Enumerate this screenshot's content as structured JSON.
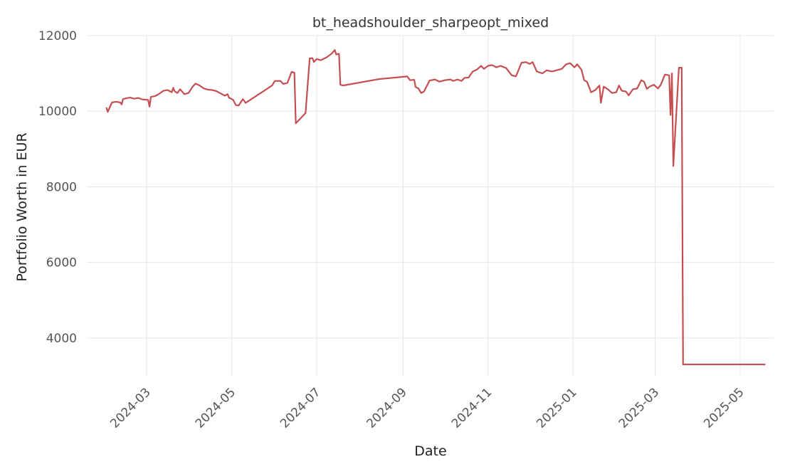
{
  "chart_data": {
    "type": "line",
    "title": "bt_headshoulder_sharpeopt_mixed",
    "xlabel": "Date",
    "ylabel": "Portfolio Worth in EUR",
    "x_ticks": [
      "2024-03",
      "2024-05",
      "2024-07",
      "2024-09",
      "2024-11",
      "2025-01",
      "2025-03",
      "2025-05"
    ],
    "y_ticks": [
      4000,
      6000,
      8000,
      10000,
      12000
    ],
    "xlim": [
      "2024-01-18",
      "2025-05-25"
    ],
    "ylim": [
      3000,
      12000
    ],
    "grid": true,
    "series": [
      {
        "color": "#c44e52",
        "points": [
          [
            "2024-02-01",
            10100
          ],
          [
            "2024-02-02",
            9980
          ],
          [
            "2024-02-05",
            10230
          ],
          [
            "2024-02-08",
            10250
          ],
          [
            "2024-02-11",
            10230
          ],
          [
            "2024-02-12",
            10180
          ],
          [
            "2024-02-13",
            10320
          ],
          [
            "2024-02-15",
            10340
          ],
          [
            "2024-02-18",
            10360
          ],
          [
            "2024-02-21",
            10330
          ],
          [
            "2024-02-24",
            10350
          ],
          [
            "2024-02-27",
            10310
          ],
          [
            "2024-03-02",
            10300
          ],
          [
            "2024-03-03",
            10120
          ],
          [
            "2024-03-04",
            10380
          ],
          [
            "2024-03-07",
            10400
          ],
          [
            "2024-03-10",
            10460
          ],
          [
            "2024-03-13",
            10540
          ],
          [
            "2024-03-16",
            10560
          ],
          [
            "2024-03-19",
            10500
          ],
          [
            "2024-03-20",
            10620
          ],
          [
            "2024-03-21",
            10530
          ],
          [
            "2024-03-23",
            10480
          ],
          [
            "2024-03-25",
            10580
          ],
          [
            "2024-03-28",
            10450
          ],
          [
            "2024-03-31",
            10480
          ],
          [
            "2024-04-03",
            10650
          ],
          [
            "2024-04-05",
            10730
          ],
          [
            "2024-04-08",
            10680
          ],
          [
            "2024-04-11",
            10600
          ],
          [
            "2024-04-14",
            10570
          ],
          [
            "2024-04-17",
            10560
          ],
          [
            "2024-04-20",
            10530
          ],
          [
            "2024-04-23",
            10470
          ],
          [
            "2024-04-26",
            10410
          ],
          [
            "2024-04-28",
            10450
          ],
          [
            "2024-04-29",
            10360
          ],
          [
            "2024-05-02",
            10300
          ],
          [
            "2024-05-04",
            10160
          ],
          [
            "2024-05-06",
            10150
          ],
          [
            "2024-05-09",
            10320
          ],
          [
            "2024-05-11",
            10220
          ],
          [
            "2024-05-30",
            10680
          ],
          [
            "2024-06-01",
            10800
          ],
          [
            "2024-06-05",
            10800
          ],
          [
            "2024-06-07",
            10720
          ],
          [
            "2024-06-10",
            10750
          ],
          [
            "2024-06-13",
            11040
          ],
          [
            "2024-06-15",
            11020
          ],
          [
            "2024-06-16",
            9680
          ],
          [
            "2024-06-23",
            9950
          ],
          [
            "2024-06-26",
            11400
          ],
          [
            "2024-06-28",
            11400
          ],
          [
            "2024-06-29",
            11300
          ],
          [
            "2024-07-01",
            11380
          ],
          [
            "2024-07-04",
            11350
          ],
          [
            "2024-07-08",
            11420
          ],
          [
            "2024-07-12",
            11530
          ],
          [
            "2024-07-14",
            11620
          ],
          [
            "2024-07-15",
            11500
          ],
          [
            "2024-07-17",
            11520
          ],
          [
            "2024-07-18",
            10700
          ],
          [
            "2024-07-20",
            10680
          ],
          [
            "2024-08-15",
            10850
          ],
          [
            "2024-09-04",
            10920
          ],
          [
            "2024-09-06",
            10820
          ],
          [
            "2024-09-09",
            10830
          ],
          [
            "2024-09-10",
            10640
          ],
          [
            "2024-09-12",
            10600
          ],
          [
            "2024-09-14",
            10480
          ],
          [
            "2024-09-16",
            10520
          ],
          [
            "2024-09-20",
            10810
          ],
          [
            "2024-09-24",
            10840
          ],
          [
            "2024-09-27",
            10780
          ],
          [
            "2024-10-01",
            10820
          ],
          [
            "2024-10-05",
            10840
          ],
          [
            "2024-10-07",
            10800
          ],
          [
            "2024-10-10",
            10840
          ],
          [
            "2024-10-13",
            10800
          ],
          [
            "2024-10-15",
            10880
          ],
          [
            "2024-10-18",
            10890
          ],
          [
            "2024-10-21",
            11050
          ],
          [
            "2024-10-24",
            11100
          ],
          [
            "2024-10-27",
            11200
          ],
          [
            "2024-10-29",
            11120
          ],
          [
            "2024-11-01",
            11200
          ],
          [
            "2024-11-04",
            11220
          ],
          [
            "2024-11-07",
            11160
          ],
          [
            "2024-11-10",
            11200
          ],
          [
            "2024-11-14",
            11140
          ],
          [
            "2024-11-18",
            10950
          ],
          [
            "2024-11-21",
            10920
          ],
          [
            "2024-11-25",
            11280
          ],
          [
            "2024-11-28",
            11300
          ],
          [
            "2024-12-01",
            11250
          ],
          [
            "2024-12-03",
            11300
          ],
          [
            "2024-12-06",
            11050
          ],
          [
            "2024-12-10",
            11000
          ],
          [
            "2024-12-13",
            11080
          ],
          [
            "2024-12-17",
            11050
          ],
          [
            "2024-12-20",
            11080
          ],
          [
            "2024-12-24",
            11120
          ],
          [
            "2024-12-27",
            11240
          ],
          [
            "2024-12-30",
            11270
          ],
          [
            "2025-01-02",
            11160
          ],
          [
            "2025-01-04",
            11240
          ],
          [
            "2025-01-07",
            11100
          ],
          [
            "2025-01-09",
            10820
          ],
          [
            "2025-01-11",
            10780
          ],
          [
            "2025-01-14",
            10500
          ],
          [
            "2025-01-17",
            10560
          ],
          [
            "2025-01-20",
            10680
          ],
          [
            "2025-01-21",
            10220
          ],
          [
            "2025-01-23",
            10650
          ],
          [
            "2025-01-26",
            10580
          ],
          [
            "2025-01-29",
            10480
          ],
          [
            "2025-02-01",
            10500
          ],
          [
            "2025-02-03",
            10680
          ],
          [
            "2025-02-05",
            10540
          ],
          [
            "2025-02-08",
            10520
          ],
          [
            "2025-02-10",
            10420
          ],
          [
            "2025-02-13",
            10580
          ],
          [
            "2025-02-16",
            10600
          ],
          [
            "2025-02-19",
            10820
          ],
          [
            "2025-02-21",
            10780
          ],
          [
            "2025-02-23",
            10590
          ],
          [
            "2025-02-25",
            10650
          ],
          [
            "2025-02-28",
            10700
          ],
          [
            "2025-03-03",
            10600
          ],
          [
            "2025-03-05",
            10700
          ],
          [
            "2025-03-08",
            10970
          ],
          [
            "2025-03-11",
            10950
          ],
          [
            "2025-03-12",
            9900
          ],
          [
            "2025-03-13",
            11000
          ],
          [
            "2025-03-14",
            8550
          ],
          [
            "2025-03-18",
            11150
          ],
          [
            "2025-03-20",
            11150
          ],
          [
            "2025-03-21",
            3300
          ],
          [
            "2025-05-19",
            3300
          ]
        ]
      }
    ]
  }
}
